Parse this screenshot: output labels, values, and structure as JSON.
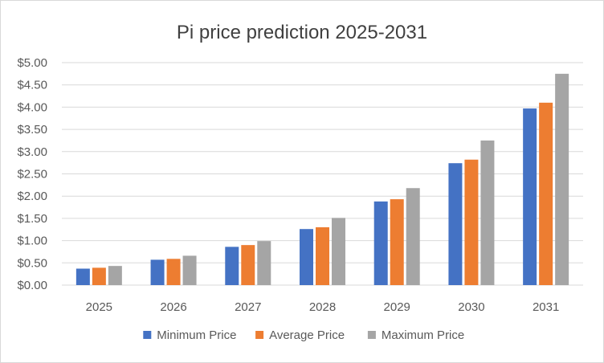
{
  "chart_data": {
    "type": "bar",
    "title": "Pi price prediction 2025-2031",
    "xlabel": "",
    "ylabel": "",
    "categories": [
      "2025",
      "2026",
      "2027",
      "2028",
      "2029",
      "2030",
      "2031"
    ],
    "series": [
      {
        "name": "Minimum Price",
        "color": "#4472c4",
        "values": [
          0.37,
          0.57,
          0.86,
          1.26,
          1.88,
          2.74,
          3.97
        ]
      },
      {
        "name": "Average Price",
        "color": "#ed7d31",
        "values": [
          0.39,
          0.59,
          0.9,
          1.3,
          1.93,
          2.82,
          4.1
        ]
      },
      {
        "name": "Maximum Price",
        "color": "#a5a5a5",
        "values": [
          0.43,
          0.66,
          0.99,
          1.51,
          2.18,
          3.25,
          4.75
        ]
      }
    ],
    "ylim": [
      0,
      5
    ],
    "y_ticks": [
      0,
      0.5,
      1,
      1.5,
      2,
      2.5,
      3,
      3.5,
      4,
      4.5,
      5
    ],
    "y_tick_labels": [
      "$0.00",
      "$0.50",
      "$1.00",
      "$1.50",
      "$2.00",
      "$2.50",
      "$3.00",
      "$3.50",
      "$4.00",
      "$4.50",
      "$5.00"
    ],
    "grid": true,
    "legend_position": "bottom",
    "gridline_color": "#d9d9d9"
  }
}
